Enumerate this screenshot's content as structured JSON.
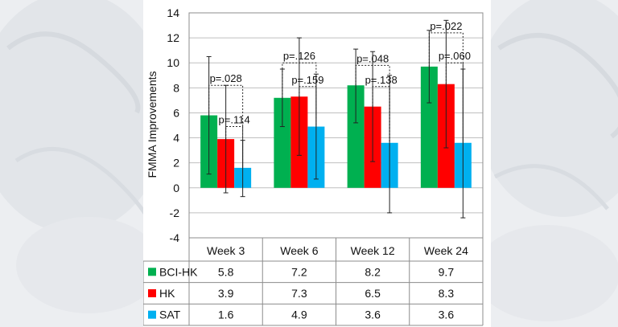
{
  "chart_data": {
    "type": "bar",
    "ylabel": "FMMA Improvements",
    "ylim": [
      -4,
      14
    ],
    "yticks": [
      -4,
      -2,
      0,
      2,
      4,
      6,
      8,
      10,
      12,
      14
    ],
    "categories": [
      "Week 3",
      "Week 6",
      "Week 12",
      "Week 24"
    ],
    "series": [
      {
        "name": "BCI-HK",
        "color": "#00b050",
        "values": [
          5.8,
          7.2,
          8.2,
          9.7
        ],
        "err_low": [
          1.1,
          4.9,
          5.2,
          6.8
        ],
        "err_high": [
          10.5,
          9.5,
          11.1,
          12.6
        ]
      },
      {
        "name": "HK",
        "color": "#ff0000",
        "values": [
          3.9,
          7.3,
          6.5,
          8.3
        ],
        "err_low": [
          -0.4,
          2.6,
          2.1,
          3.2
        ],
        "err_high": [
          8.2,
          12.0,
          10.9,
          13.4
        ]
      },
      {
        "name": "SAT",
        "color": "#00b0f0",
        "values": [
          1.6,
          4.9,
          3.6,
          3.6
        ],
        "err_low": [
          -0.7,
          0.7,
          -2.0,
          -2.4
        ],
        "err_high": [
          3.8,
          9.1,
          9.0,
          9.5
        ]
      }
    ],
    "table_values": [
      [
        "5.8",
        "7.2",
        "8.2",
        "9.7"
      ],
      [
        "3.9",
        "7.3",
        "6.5",
        "8.3"
      ],
      [
        "1.6",
        "4.9",
        "3.6",
        "3.6"
      ]
    ],
    "comparisons": [
      {
        "category": 0,
        "text": "p=.028",
        "compare": "BCI-HK vs SAT",
        "bracket_y": 8.2
      },
      {
        "category": 0,
        "text": "p=.114",
        "compare": "HK vs SAT",
        "bracket_y": 4.9
      },
      {
        "category": 1,
        "text": "p=.126",
        "compare": "BCI-HK vs SAT",
        "bracket_y": 10.0
      },
      {
        "category": 1,
        "text": "p=.159",
        "compare": "HK vs SAT",
        "bracket_y": 8.1
      },
      {
        "category": 2,
        "text": "p=.048",
        "compare": "BCI-HK vs SAT",
        "bracket_y": 9.8
      },
      {
        "category": 2,
        "text": "p=.138",
        "compare": "HK vs SAT",
        "bracket_y": 8.1
      },
      {
        "category": 3,
        "text": "p=.022",
        "compare": "BCI-HK vs SAT",
        "bracket_y": 12.4
      },
      {
        "category": 3,
        "text": "p=.060",
        "compare": "HK vs SAT",
        "bracket_y": 10.0
      }
    ],
    "grid": "horizontal",
    "legend": "table below chart"
  }
}
